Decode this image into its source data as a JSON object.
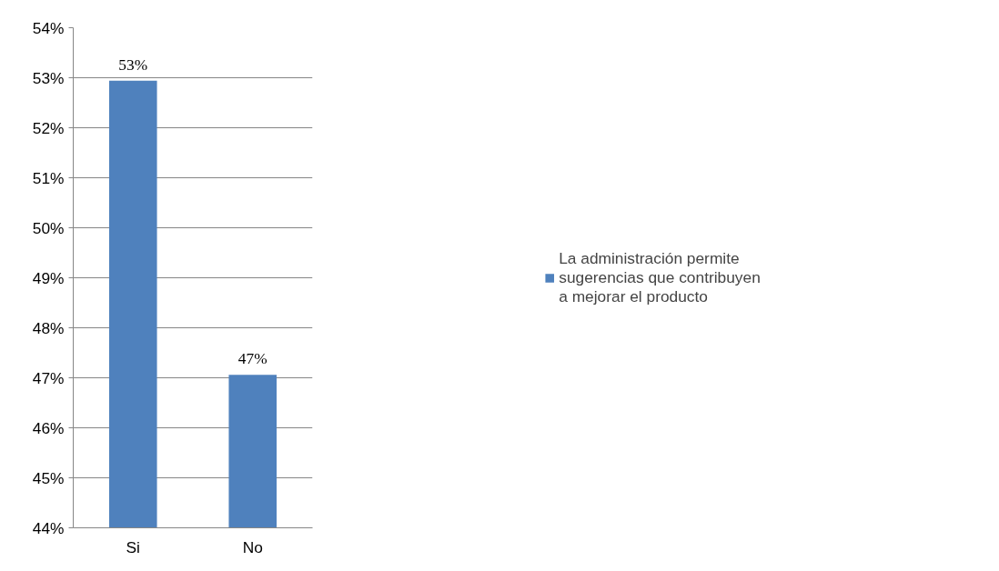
{
  "chart_data": {
    "type": "bar",
    "categories": [
      "Si",
      "No"
    ],
    "series": [
      {
        "name": "La administración permite sugerencias que contribuyen a mejorar el producto",
        "color": "#4f81bd",
        "values": [
          52.94,
          47.06
        ],
        "value_labels": [
          "53%",
          "47%"
        ]
      }
    ],
    "ylim": [
      44,
      54
    ],
    "yticks": [
      {
        "value": 44,
        "label": "44%"
      },
      {
        "value": 45,
        "label": "45%"
      },
      {
        "value": 46,
        "label": "46%"
      },
      {
        "value": 47,
        "label": "47%"
      },
      {
        "value": 48,
        "label": "48%"
      },
      {
        "value": 49,
        "label": "49%"
      },
      {
        "value": 50,
        "label": "50%"
      },
      {
        "value": 51,
        "label": "51%"
      },
      {
        "value": 52,
        "label": "52%"
      },
      {
        "value": 53,
        "label": "53%"
      },
      {
        "value": 54,
        "label": "54%"
      }
    ],
    "grid": "y",
    "legend": "right"
  }
}
